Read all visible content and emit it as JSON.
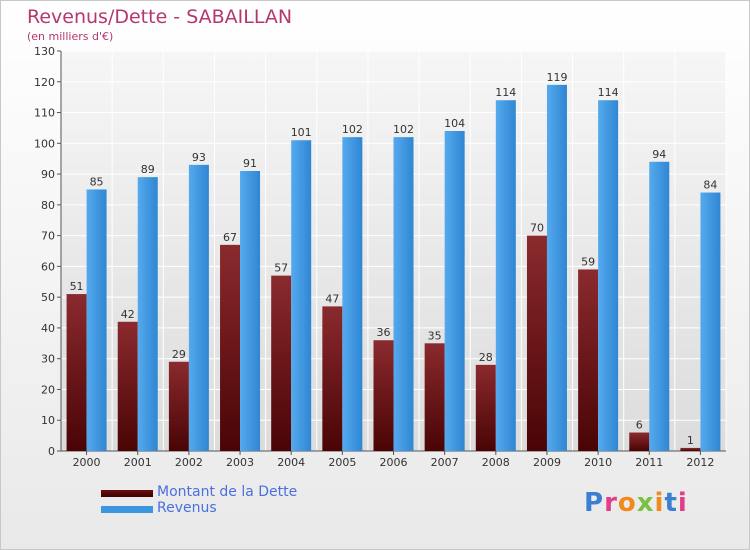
{
  "title": "Revenus/Dette - SABAILLAN",
  "subtitle": "(en milliers d'€)",
  "brand": {
    "text": "Proxiti",
    "letter_colors": [
      "#3a7fd0",
      "#e23c8a",
      "#f08a1c",
      "#7ac143",
      "#f08a1c",
      "#3a7fd0",
      "#e23c8a"
    ]
  },
  "legend": [
    {
      "label": "Montant de la Dette",
      "color": "#6a0d10"
    },
    {
      "label": "Revenus",
      "color": "#3c96e0"
    }
  ],
  "chart_data": {
    "type": "bar",
    "title": "Revenus/Dette - SABAILLAN",
    "subtitle": "(en milliers d'€)",
    "xlabel": "",
    "ylabel": "",
    "categories": [
      "2000",
      "2001",
      "2002",
      "2003",
      "2004",
      "2005",
      "2006",
      "2007",
      "2008",
      "2009",
      "2010",
      "2011",
      "2012"
    ],
    "series": [
      {
        "name": "Montant de la Dette",
        "color": "#6a0d10",
        "values": [
          51,
          42,
          29,
          67,
          57,
          47,
          36,
          35,
          28,
          70,
          59,
          6,
          1
        ]
      },
      {
        "name": "Revenus",
        "color": "#3c96e0",
        "values": [
          85,
          89,
          93,
          91,
          101,
          102,
          102,
          104,
          114,
          119,
          114,
          94,
          84
        ]
      }
    ],
    "ylim": [
      0,
      130
    ],
    "yticks": [
      0,
      10,
      20,
      30,
      40,
      50,
      60,
      70,
      80,
      90,
      100,
      110,
      120,
      130
    ],
    "grid": true,
    "legend_position": "bottom-left"
  }
}
